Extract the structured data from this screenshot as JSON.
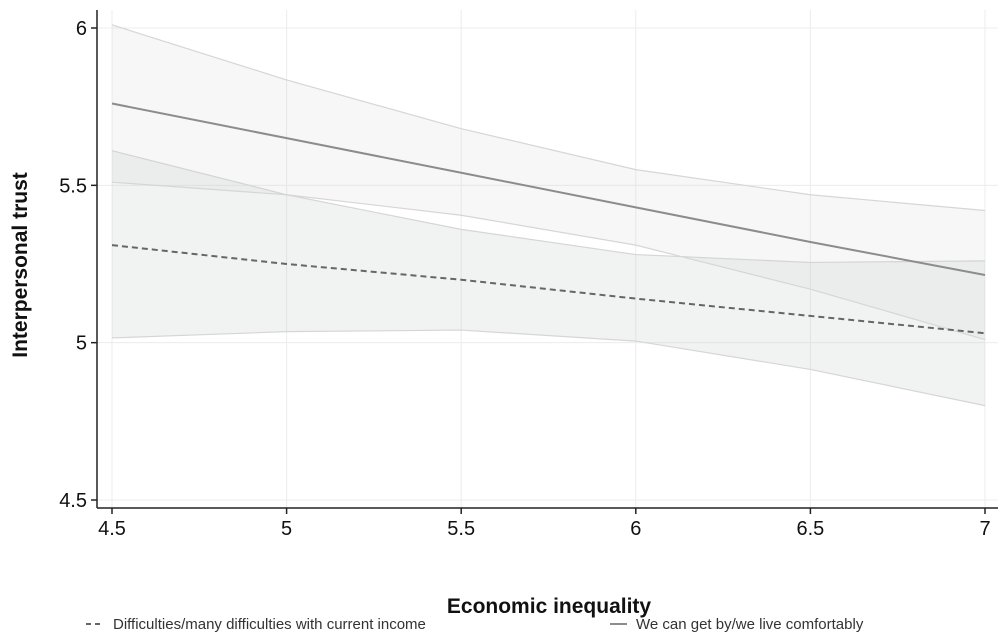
{
  "chart_data": {
    "type": "line",
    "title": "",
    "xlabel": "Economic inequality",
    "ylabel": "Interpersonal trust",
    "xlim": [
      4.5,
      7
    ],
    "ylim": [
      4.5,
      6
    ],
    "x_ticks": [
      "4.5",
      "5",
      "5.5",
      "6",
      "6.5",
      "7"
    ],
    "y_ticks": [
      "4.5",
      "5",
      "5.5",
      "6"
    ],
    "grid": true,
    "legend_position": "bottom",
    "x": [
      4.5,
      5,
      5.5,
      6,
      6.5,
      7
    ],
    "series": [
      {
        "name": "Difficulties/many difficulties with current income",
        "line_style": "dashed",
        "color": "#666666",
        "values": [
          5.31,
          5.25,
          5.2,
          5.14,
          5.085,
          5.03
        ],
        "ci_lower": [
          5.015,
          5.035,
          5.04,
          5.005,
          4.915,
          4.8
        ],
        "ci_upper": [
          5.61,
          5.47,
          5.36,
          5.28,
          5.255,
          5.26
        ]
      },
      {
        "name": "We can get by/we live comfortably",
        "line_style": "solid",
        "color": "#8c8c8c",
        "values": [
          5.76,
          5.65,
          5.54,
          5.43,
          5.32,
          5.215
        ],
        "ci_lower": [
          5.51,
          5.47,
          5.405,
          5.31,
          5.17,
          5.01
        ],
        "ci_upper": [
          6.01,
          5.835,
          5.68,
          5.55,
          5.47,
          5.42
        ]
      }
    ]
  }
}
